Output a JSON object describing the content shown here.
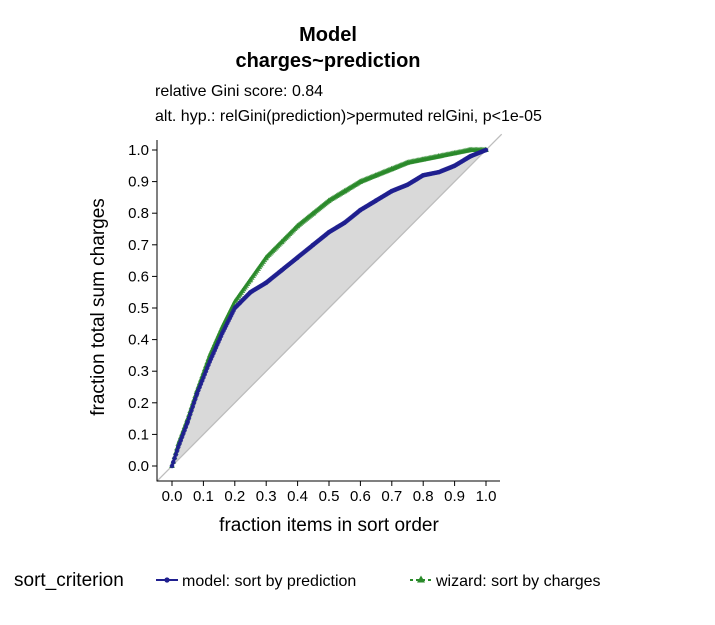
{
  "chart_data": {
    "type": "line",
    "title": "Model",
    "title_line2": "charges~prediction",
    "subtitle_line1": "relative Gini score: 0.84",
    "subtitle_line2": "alt. hyp.: relGini(prediction)>permuted relGini, p<1e-05",
    "xlabel": "fraction items in sort order",
    "ylabel": "fraction total sum charges",
    "xlim": [
      0,
      1
    ],
    "ylim": [
      0,
      1
    ],
    "x_ticks": [
      "0.0",
      "0.1",
      "0.2",
      "0.3",
      "0.4",
      "0.5",
      "0.6",
      "0.7",
      "0.8",
      "0.9",
      "1.0"
    ],
    "y_ticks": [
      "0.0",
      "0.1",
      "0.2",
      "0.3",
      "0.4",
      "0.5",
      "0.6",
      "0.7",
      "0.8",
      "0.9",
      "1.0"
    ],
    "grid": false,
    "diagonal_reference": true,
    "legend": {
      "title": "sort_criterion",
      "placement": "bottom",
      "entries": [
        {
          "label": "model: sort by prediction",
          "color": "#1f1f8f"
        },
        {
          "label": "wizard: sort by charges",
          "color": "#2a8a2a"
        }
      ]
    },
    "series": [
      {
        "name": "model: sort by prediction",
        "color": "#1f1f8f",
        "marker": "circle",
        "x": [
          0.0,
          0.02,
          0.05,
          0.08,
          0.12,
          0.16,
          0.2,
          0.25,
          0.3,
          0.35,
          0.4,
          0.45,
          0.5,
          0.55,
          0.6,
          0.65,
          0.7,
          0.75,
          0.8,
          0.85,
          0.9,
          0.95,
          1.0
        ],
        "y": [
          0.0,
          0.06,
          0.14,
          0.23,
          0.33,
          0.42,
          0.5,
          0.55,
          0.58,
          0.62,
          0.66,
          0.7,
          0.74,
          0.77,
          0.81,
          0.84,
          0.87,
          0.89,
          0.92,
          0.93,
          0.95,
          0.98,
          1.0
        ]
      },
      {
        "name": "wizard: sort by charges",
        "color": "#2a8a2a",
        "marker": "triangle",
        "x": [
          0.0,
          0.02,
          0.05,
          0.08,
          0.12,
          0.16,
          0.2,
          0.25,
          0.3,
          0.35,
          0.4,
          0.45,
          0.5,
          0.55,
          0.6,
          0.65,
          0.7,
          0.75,
          0.8,
          0.85,
          0.9,
          0.95,
          1.0
        ],
        "y": [
          0.0,
          0.07,
          0.15,
          0.24,
          0.35,
          0.44,
          0.52,
          0.59,
          0.66,
          0.71,
          0.76,
          0.8,
          0.84,
          0.87,
          0.9,
          0.92,
          0.94,
          0.96,
          0.97,
          0.98,
          0.99,
          1.0,
          1.0
        ]
      }
    ]
  }
}
